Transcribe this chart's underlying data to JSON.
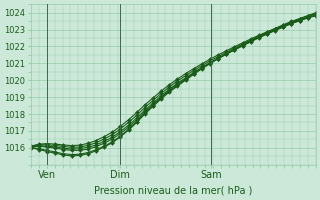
{
  "xlabel": "Pression niveau de la mer( hPa )",
  "ylim": [
    1015.0,
    1024.5
  ],
  "xlim": [
    0,
    90
  ],
  "yticks": [
    1016,
    1017,
    1018,
    1019,
    1020,
    1021,
    1022,
    1023,
    1024
  ],
  "xtick_labels": [
    "Ven",
    "Dim",
    "Sam"
  ],
  "xtick_positions": [
    5,
    28,
    57
  ],
  "vline_positions": [
    5,
    28,
    57
  ],
  "bg_color": "#cce8d8",
  "grid_color": "#99ccaa",
  "line_color": "#1a5c1a",
  "marker": "D",
  "markersize": 2.0,
  "linewidth": 0.8,
  "series": [
    [
      1016.0,
      1015.95,
      1015.85,
      1015.75,
      1015.65,
      1015.6,
      1015.62,
      1015.72,
      1015.88,
      1016.1,
      1016.35,
      1016.7,
      1017.1,
      1017.55,
      1018.05,
      1018.5,
      1018.95,
      1019.35,
      1019.7,
      1020.05,
      1020.38,
      1020.7,
      1021.0,
      1021.28,
      1021.55,
      1021.8,
      1022.05,
      1022.3,
      1022.55,
      1022.78,
      1023.0,
      1023.22,
      1023.42,
      1023.58,
      1023.72,
      1023.85
    ],
    [
      1016.0,
      1015.9,
      1015.78,
      1015.68,
      1015.58,
      1015.52,
      1015.55,
      1015.65,
      1015.82,
      1016.05,
      1016.3,
      1016.65,
      1017.05,
      1017.5,
      1018.0,
      1018.45,
      1018.9,
      1019.3,
      1019.65,
      1020.0,
      1020.35,
      1020.68,
      1020.98,
      1021.28,
      1021.56,
      1021.83,
      1022.1,
      1022.36,
      1022.61,
      1022.84,
      1023.06,
      1023.28,
      1023.48,
      1023.65,
      1023.82,
      1023.95
    ],
    [
      1016.05,
      1016.08,
      1016.05,
      1015.98,
      1015.9,
      1015.85,
      1015.85,
      1015.92,
      1016.07,
      1016.27,
      1016.52,
      1016.85,
      1017.22,
      1017.65,
      1018.12,
      1018.55,
      1019.0,
      1019.4,
      1019.75,
      1020.08,
      1020.4,
      1020.71,
      1021.0,
      1021.28,
      1021.54,
      1021.79,
      1022.03,
      1022.27,
      1022.51,
      1022.73,
      1022.94,
      1023.15,
      1023.35,
      1023.52,
      1023.68,
      1023.82
    ],
    [
      1016.05,
      1016.12,
      1016.1,
      1016.05,
      1015.98,
      1015.93,
      1015.95,
      1016.03,
      1016.17,
      1016.38,
      1016.63,
      1016.97,
      1017.33,
      1017.77,
      1018.22,
      1018.65,
      1019.08,
      1019.47,
      1019.82,
      1020.14,
      1020.46,
      1020.76,
      1021.04,
      1021.31,
      1021.57,
      1021.82,
      1022.06,
      1022.3,
      1022.53,
      1022.74,
      1022.95,
      1023.16,
      1023.35,
      1023.53,
      1023.7,
      1023.85
    ],
    [
      1016.08,
      1016.18,
      1016.18,
      1016.14,
      1016.08,
      1016.03,
      1016.05,
      1016.14,
      1016.3,
      1016.52,
      1016.78,
      1017.12,
      1017.5,
      1017.93,
      1018.38,
      1018.8,
      1019.22,
      1019.6,
      1019.95,
      1020.27,
      1020.58,
      1020.87,
      1021.14,
      1021.4,
      1021.65,
      1021.9,
      1022.14,
      1022.37,
      1022.59,
      1022.8,
      1023.0,
      1023.2,
      1023.4,
      1023.58,
      1023.75,
      1023.95
    ],
    [
      1016.1,
      1016.22,
      1016.25,
      1016.22,
      1016.17,
      1016.13,
      1016.16,
      1016.26,
      1016.43,
      1016.66,
      1016.93,
      1017.27,
      1017.66,
      1018.09,
      1018.54,
      1018.95,
      1019.36,
      1019.73,
      1020.07,
      1020.39,
      1020.69,
      1020.97,
      1021.24,
      1021.5,
      1021.74,
      1021.98,
      1022.21,
      1022.44,
      1022.66,
      1022.86,
      1023.06,
      1023.25,
      1023.44,
      1023.62,
      1023.8,
      1024.0
    ]
  ]
}
